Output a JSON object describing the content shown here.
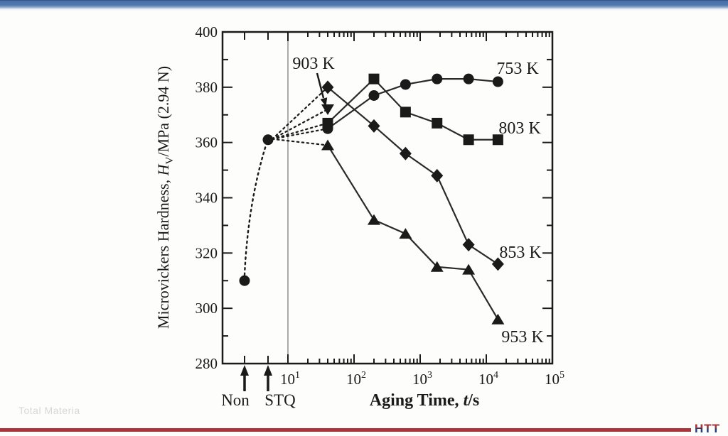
{
  "page": {
    "watermark": "Total Materia",
    "logo_text": "HTT",
    "top_bar_color": "#4d77ae",
    "bottom_bar_color": "#a93439",
    "logo_color": "#1d3f7b"
  },
  "chart_data": {
    "type": "line",
    "title": "",
    "xlabel": "Aging Time, t/s",
    "xlabel_parts": {
      "prefix": "Aging Time, ",
      "symbol": "t",
      "suffix": "/s"
    },
    "ylabel": "Microvickers Hardness, Hv/MPa (2.94 N)",
    "ylabel_parts": {
      "prefix": "Microvickers Hardness, ",
      "symbol": "H",
      "subscript": "V",
      "suffix": "/MPa (2.94 N)"
    },
    "x_scale": "log",
    "x_tick_exponents": [
      1,
      2,
      3,
      4,
      5
    ],
    "x_special_categories": [
      "Non",
      "STQ"
    ],
    "y_ticks": [
      400,
      380,
      360,
      340,
      320,
      300,
      280
    ],
    "ylim": [
      280,
      400
    ],
    "grid": "single gray vertical line at 10^1",
    "legend_position": "inline labels at right of curves",
    "line_color": "#1a1a1a",
    "pre_aging": {
      "non_label": "Non",
      "stq_label": "STQ",
      "non_value": 310,
      "stq_value": 361,
      "style": "dotted connector from Non to STQ, dotted fan from STQ to first aged points"
    },
    "series": [
      {
        "name": "753 K",
        "marker": "circle",
        "x": [
          40,
          200,
          600,
          1800,
          5400,
          15000
        ],
        "y": [
          365,
          377,
          381,
          383,
          383,
          382
        ]
      },
      {
        "name": "803 K",
        "marker": "square",
        "x": [
          40,
          200,
          600,
          1800,
          5400,
          15000
        ],
        "y": [
          367,
          383,
          371,
          367,
          361,
          361
        ]
      },
      {
        "name": "853 K",
        "marker": "diamond",
        "x": [
          40,
          200,
          600,
          1800,
          5400,
          15000
        ],
        "y": [
          380,
          366,
          356,
          348,
          323,
          316
        ]
      },
      {
        "name": "903 K",
        "marker": "triangle-down",
        "x": [
          40
        ],
        "y": [
          372
        ],
        "arrow_annotation": true
      },
      {
        "name": "953 K",
        "marker": "triangle-up",
        "x": [
          40,
          200,
          600,
          1800,
          5400,
          15000
        ],
        "y": [
          359,
          332,
          327,
          315,
          314,
          296
        ]
      }
    ]
  }
}
